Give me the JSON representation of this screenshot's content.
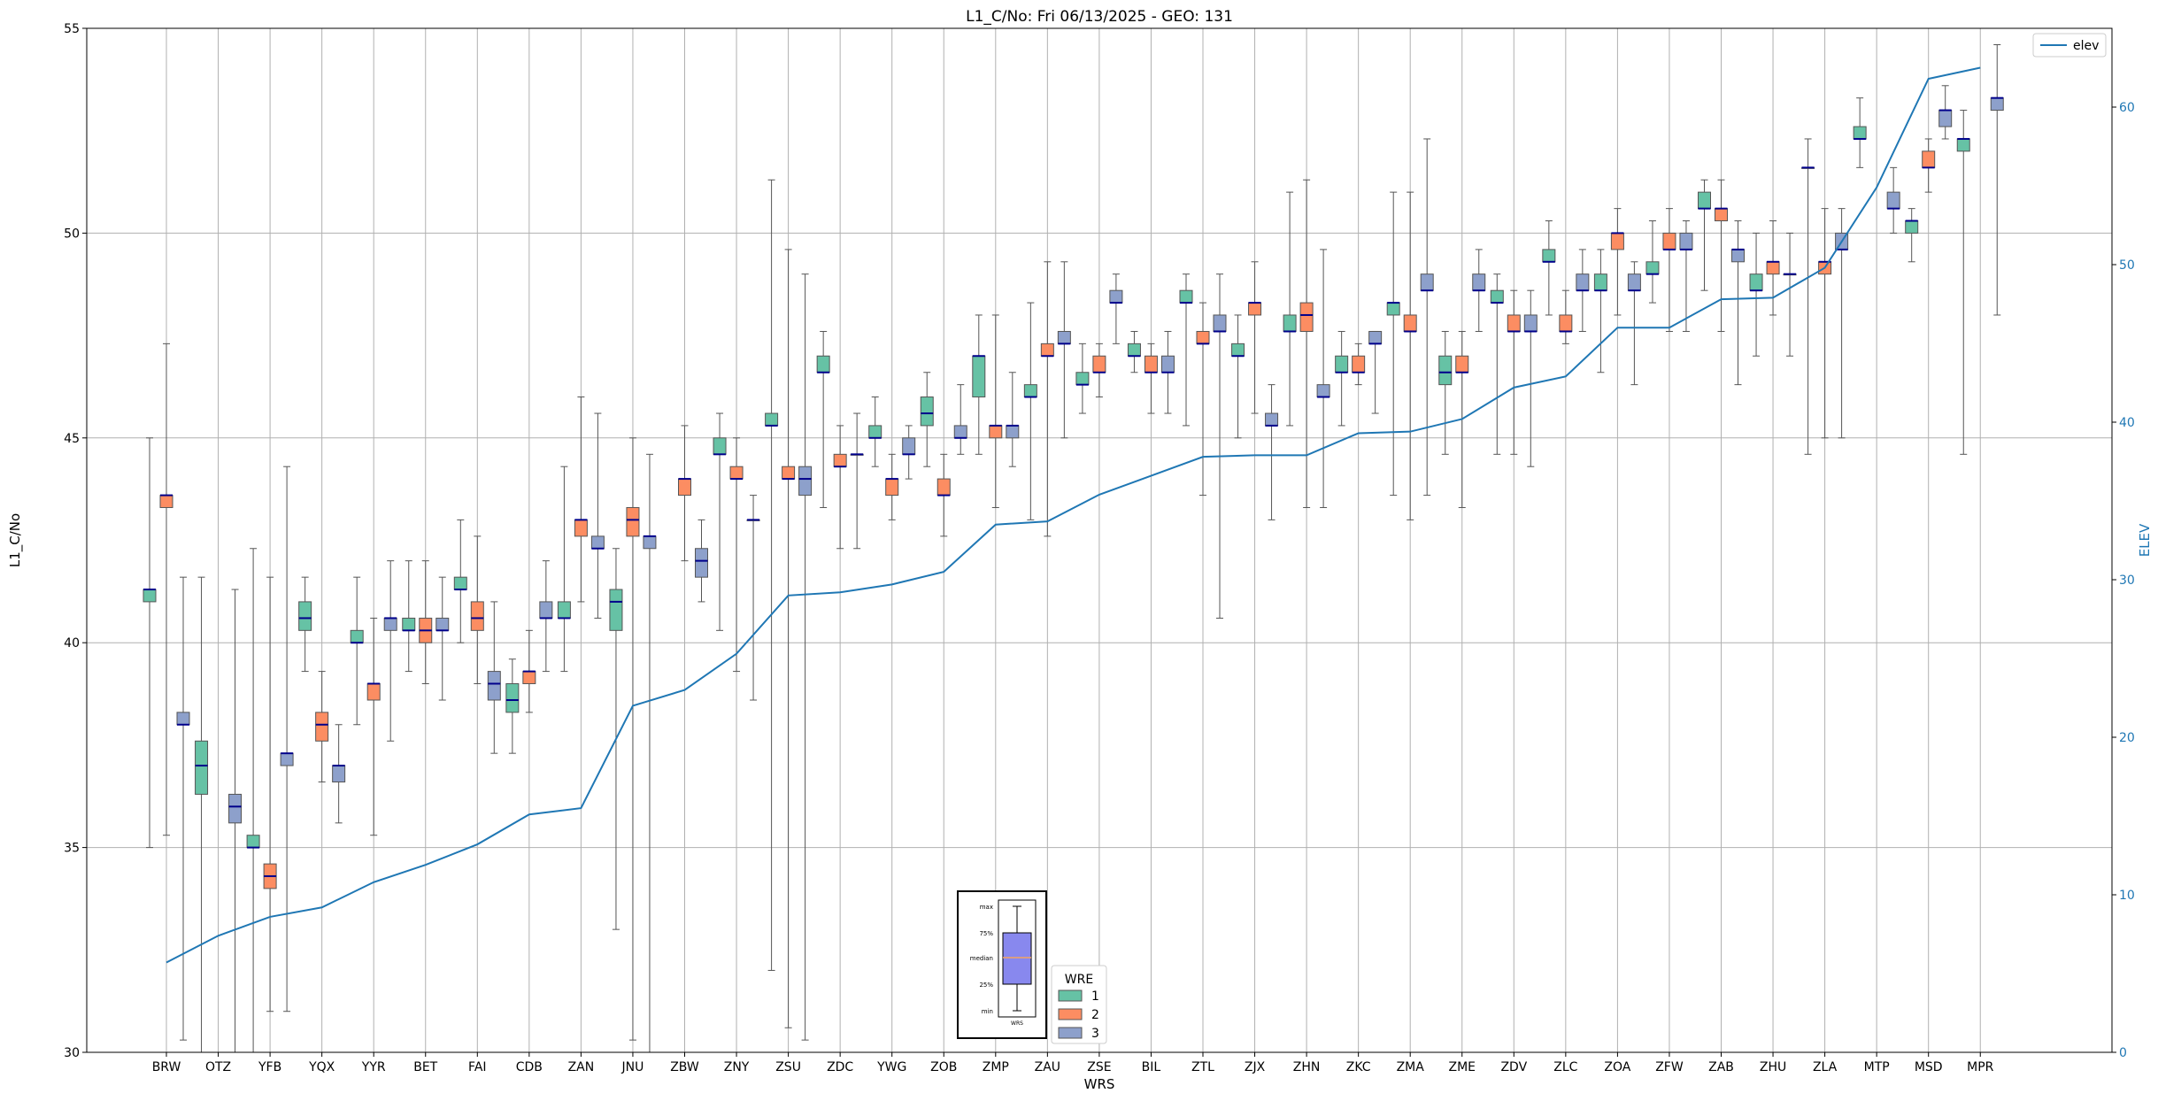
{
  "chart_data": {
    "type": "box",
    "title": "L1_C/No: Fri 06/13/2025 - GEO: 131",
    "xlabel": "WRS",
    "ylabel": "L1_C/No",
    "y2label": "ELEV",
    "ylim": [
      30,
      55
    ],
    "yticks": [
      30,
      35,
      40,
      45,
      50,
      55
    ],
    "y2lim": [
      0,
      65
    ],
    "y2ticks": [
      0,
      10,
      20,
      30,
      40,
      50,
      60
    ],
    "grid": true,
    "categories": [
      "BRW",
      "OTZ",
      "YFB",
      "YQX",
      "YYR",
      "BET",
      "FAI",
      "CDB",
      "ZAN",
      "JNU",
      "ZBW",
      "ZNY",
      "ZSU",
      "ZDC",
      "YWG",
      "ZOB",
      "ZMP",
      "ZAU",
      "ZSE",
      "BIL",
      "ZTL",
      "ZJX",
      "ZHN",
      "ZKC",
      "ZMA",
      "ZME",
      "ZDV",
      "ZLC",
      "ZOA",
      "ZFW",
      "ZAB",
      "ZHU",
      "ZLA",
      "MTP",
      "MSD",
      "MPR"
    ],
    "elev_legend": "elev",
    "legend_placement": "top-right",
    "series_legend_title": "WRE",
    "series": [
      {
        "name": "1",
        "color": "#66c2a5",
        "boxes": [
          [
            35,
            41.0,
            41.3,
            41.3,
            45
          ],
          [
            30,
            36.3,
            37.0,
            37.6,
            41.6
          ],
          [
            30,
            35.0,
            35.0,
            35.3,
            42.3
          ],
          [
            39.3,
            40.3,
            40.6,
            41.0,
            41.6
          ],
          [
            38.0,
            40.0,
            40.0,
            40.3,
            41.6
          ],
          [
            39.3,
            40.3,
            40.3,
            40.6,
            42.0
          ],
          [
            40.0,
            41.3,
            41.3,
            41.6,
            43.0
          ],
          [
            37.3,
            38.3,
            38.6,
            39.0,
            39.6
          ],
          [
            39.3,
            40.6,
            40.6,
            41.0,
            44.3
          ],
          [
            33.0,
            40.3,
            41.0,
            41.3,
            42.3
          ],
          null,
          [
            40.3,
            44.6,
            44.6,
            45.0,
            45.6
          ],
          [
            32.0,
            45.3,
            45.3,
            45.6,
            51.3
          ],
          [
            43.3,
            46.6,
            46.6,
            47.0,
            47.6
          ],
          [
            44.3,
            45.0,
            45.0,
            45.3,
            46.0
          ],
          [
            44.3,
            45.3,
            45.6,
            46.0,
            46.6
          ],
          [
            44.6,
            46.0,
            47.0,
            47.0,
            48.0
          ],
          [
            43.0,
            46.0,
            46.0,
            46.3,
            48.3
          ],
          [
            45.6,
            46.3,
            46.3,
            46.6,
            47.3
          ],
          [
            46.6,
            47.0,
            47.0,
            47.3,
            47.6
          ],
          [
            45.3,
            48.3,
            48.3,
            48.6,
            49.0
          ],
          [
            45.0,
            47.0,
            47.0,
            47.3,
            48.0
          ],
          [
            45.3,
            47.6,
            47.6,
            48.0,
            51.0
          ],
          [
            45.3,
            46.6,
            46.6,
            47.0,
            47.6
          ],
          [
            43.6,
            48.0,
            48.3,
            48.3,
            51.0
          ],
          [
            44.6,
            46.3,
            46.6,
            47.0,
            47.6
          ],
          [
            44.6,
            48.3,
            48.3,
            48.6,
            49.0
          ],
          [
            48.0,
            49.3,
            49.3,
            49.6,
            50.3
          ],
          [
            46.6,
            48.6,
            48.6,
            49.0,
            49.6
          ],
          [
            48.3,
            49.0,
            49.0,
            49.3,
            50.3
          ],
          [
            48.6,
            50.6,
            50.6,
            51.0,
            51.3
          ],
          [
            47.0,
            48.6,
            48.6,
            49.0,
            50.0
          ],
          [
            44.6,
            51.6,
            51.6,
            51.6,
            52.3
          ],
          [
            51.6,
            52.3,
            52.3,
            52.6,
            53.3
          ],
          [
            49.3,
            50.0,
            50.3,
            50.3,
            50.6
          ],
          [
            44.6,
            52.0,
            52.3,
            52.3,
            53.0
          ]
        ]
      },
      {
        "name": "2",
        "color": "#fc8d62",
        "boxes": [
          [
            35.3,
            43.3,
            43.6,
            43.6,
            47.3
          ],
          null,
          [
            31.0,
            34.0,
            34.3,
            34.6,
            41.6
          ],
          [
            36.6,
            37.6,
            38.0,
            38.3,
            39.3
          ],
          [
            35.3,
            38.6,
            39.0,
            39.0,
            40.6
          ],
          [
            39.0,
            40.0,
            40.3,
            40.6,
            42.0
          ],
          [
            39.0,
            40.3,
            40.6,
            41.0,
            42.6
          ],
          [
            38.3,
            39.0,
            39.3,
            39.3,
            40.3
          ],
          [
            41.0,
            42.6,
            43.0,
            43.0,
            46.0
          ],
          [
            30.3,
            42.6,
            43.0,
            43.3,
            45.0
          ],
          [
            42.0,
            43.6,
            44.0,
            44.0,
            45.3
          ],
          [
            39.3,
            44.0,
            44.0,
            44.3,
            45.0
          ],
          [
            30.6,
            44.0,
            44.0,
            44.3,
            49.6
          ],
          [
            42.3,
            44.3,
            44.3,
            44.6,
            45.3
          ],
          [
            43.0,
            43.6,
            44.0,
            44.0,
            44.6
          ],
          [
            42.6,
            43.6,
            43.6,
            44.0,
            44.6
          ],
          [
            43.3,
            45.0,
            45.3,
            45.3,
            48.0
          ],
          [
            42.6,
            47.0,
            47.0,
            47.3,
            49.3
          ],
          [
            46.0,
            46.6,
            46.6,
            47.0,
            47.3
          ],
          [
            45.6,
            46.6,
            46.6,
            47.0,
            47.3
          ],
          [
            43.6,
            47.3,
            47.3,
            47.6,
            48.3
          ],
          [
            45.6,
            48.0,
            48.3,
            48.3,
            49.3
          ],
          [
            43.3,
            47.6,
            48.0,
            48.3,
            51.3
          ],
          [
            46.3,
            46.6,
            46.6,
            47.0,
            47.3
          ],
          [
            43.0,
            47.6,
            47.6,
            48.0,
            51.0
          ],
          [
            43.3,
            46.6,
            46.6,
            47.0,
            47.6
          ],
          [
            44.6,
            47.6,
            47.6,
            48.0,
            48.6
          ],
          [
            47.3,
            47.6,
            47.6,
            48.0,
            48.6
          ],
          [
            48.0,
            49.6,
            50.0,
            50.0,
            50.6
          ],
          [
            47.6,
            49.6,
            49.6,
            50.0,
            50.6
          ],
          [
            47.6,
            50.3,
            50.6,
            50.6,
            51.3
          ],
          [
            48.0,
            49.0,
            49.3,
            49.3,
            50.3
          ],
          [
            45.0,
            49.0,
            49.3,
            49.3,
            50.6
          ],
          null,
          [
            51.0,
            51.6,
            51.6,
            52.0,
            52.3
          ],
          null
        ]
      },
      {
        "name": "3",
        "color": "#8da0cb",
        "boxes": [
          [
            30.3,
            38.0,
            38.0,
            38.3,
            41.6
          ],
          [
            30,
            35.6,
            36.0,
            36.3,
            41.3
          ],
          [
            31.0,
            37.0,
            37.3,
            37.3,
            44.3
          ],
          [
            35.6,
            36.6,
            37.0,
            37.0,
            38.0
          ],
          [
            37.6,
            40.3,
            40.6,
            40.6,
            42.0
          ],
          [
            38.6,
            40.3,
            40.3,
            40.6,
            41.6
          ],
          [
            37.3,
            38.6,
            39.0,
            39.3,
            41.0
          ],
          [
            39.3,
            40.6,
            40.6,
            41.0,
            42.0
          ],
          [
            40.6,
            42.3,
            42.3,
            42.6,
            45.6
          ],
          [
            30,
            42.3,
            42.6,
            42.6,
            44.6
          ],
          [
            41.0,
            41.6,
            42.0,
            42.3,
            43.0
          ],
          [
            38.6,
            43.0,
            43.0,
            43.0,
            43.6
          ],
          [
            30.3,
            43.6,
            44.0,
            44.3,
            49.0
          ],
          [
            42.3,
            44.6,
            44.6,
            44.6,
            45.6
          ],
          [
            44.0,
            44.6,
            44.6,
            45.0,
            45.3
          ],
          [
            44.6,
            45.0,
            45.0,
            45.3,
            46.3
          ],
          [
            44.3,
            45.0,
            45.3,
            45.3,
            46.6
          ],
          [
            45.0,
            47.3,
            47.3,
            47.6,
            49.3
          ],
          [
            47.3,
            48.3,
            48.3,
            48.6,
            49.0
          ],
          [
            45.6,
            46.6,
            46.6,
            47.0,
            47.6
          ],
          [
            40.6,
            47.6,
            47.6,
            48.0,
            49.0
          ],
          [
            43.0,
            45.3,
            45.3,
            45.6,
            46.3
          ],
          [
            43.3,
            46.0,
            46.0,
            46.3,
            49.6
          ],
          [
            45.6,
            47.3,
            47.3,
            47.6,
            47.6
          ],
          [
            43.6,
            48.6,
            48.6,
            49.0,
            52.3
          ],
          [
            47.6,
            48.6,
            48.6,
            49.0,
            49.6
          ],
          [
            44.3,
            47.6,
            47.6,
            48.0,
            48.6
          ],
          [
            47.6,
            48.6,
            48.6,
            49.0,
            49.6
          ],
          [
            46.3,
            48.6,
            48.6,
            49.0,
            49.3
          ],
          [
            47.6,
            49.6,
            49.6,
            50.0,
            50.3
          ],
          [
            46.3,
            49.3,
            49.6,
            49.6,
            50.3
          ],
          [
            47.0,
            49.0,
            49.0,
            49.0,
            50.0
          ],
          [
            45.0,
            49.6,
            49.6,
            50.0,
            50.6
          ],
          [
            50.0,
            50.6,
            50.6,
            51.0,
            51.6
          ],
          [
            52.3,
            52.6,
            53.0,
            53.0,
            53.6
          ],
          [
            48.0,
            53.0,
            53.3,
            53.3,
            54.6
          ]
        ]
      }
    ],
    "elev": [
      5.7,
      7.4,
      8.6,
      9.2,
      10.8,
      11.9,
      13.2,
      15.1,
      15.5,
      22.0,
      23.0,
      25.3,
      29.0,
      29.2,
      29.7,
      30.5,
      33.5,
      33.7,
      35.4,
      36.6,
      37.8,
      37.9,
      37.9,
      39.3,
      39.4,
      40.2,
      42.2,
      42.9,
      46.0,
      46.0,
      47.8,
      47.9,
      49.8,
      54.9,
      61.8,
      62.5
    ],
    "inset_legend": {
      "labels": [
        "max",
        "75%",
        "median",
        "25%",
        "min"
      ],
      "xlabel": "WRS"
    }
  }
}
